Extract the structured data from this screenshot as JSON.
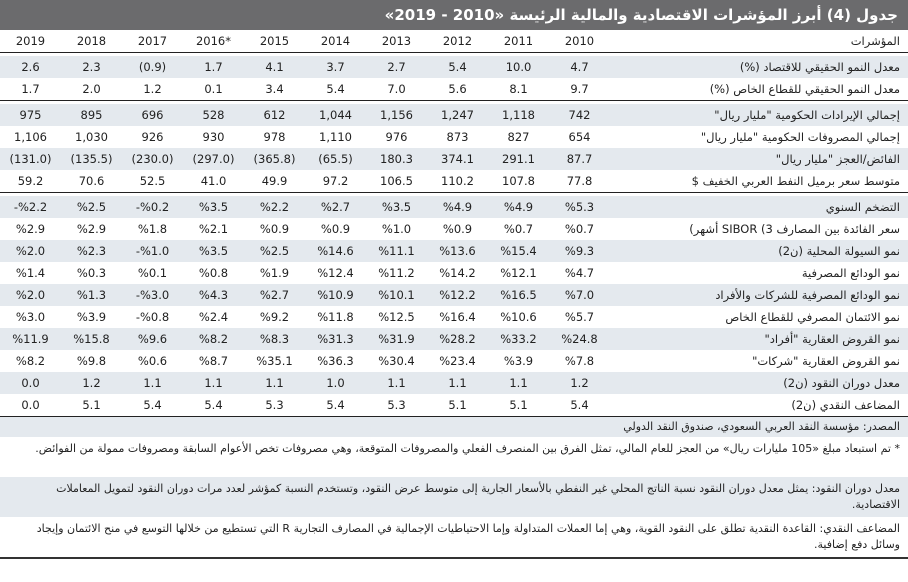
{
  "title": "جدول (4) أبرز المؤشرات الاقتصادية والمالية الرئيسة «2010 - 2019»",
  "header": {
    "label": "المؤشرات",
    "years": [
      "2010",
      "2011",
      "2012",
      "2013",
      "2014",
      "2015",
      "*2016",
      "2017",
      "2018",
      "2019"
    ]
  },
  "groups": [
    {
      "rows": [
        {
          "label": "معدل النمو الحقيقي للاقتصاد (%)",
          "values": [
            "4.7",
            "10.0",
            "5.4",
            "2.7",
            "3.7",
            "4.1",
            "1.7",
            "(0.9)",
            "2.3",
            "2.6"
          ]
        },
        {
          "label": "معدل النمو الحقيقي للقطاع الخاص (%)",
          "values": [
            "9.7",
            "8.1",
            "5.6",
            "7.0",
            "5.4",
            "3.4",
            "0.1",
            "1.2",
            "2.0",
            "1.7"
          ]
        }
      ]
    },
    {
      "rows": [
        {
          "label": "إجمالي الإيرادات الحكومية \"مليار ريال\"",
          "values": [
            "742",
            "1,118",
            "1,247",
            "1,156",
            "1,044",
            "612",
            "528",
            "696",
            "895",
            "975"
          ]
        },
        {
          "label": "إجمالي المصروفات الحكومية \"مليار ريال\"",
          "values": [
            "654",
            "827",
            "873",
            "976",
            "1,110",
            "978",
            "930",
            "926",
            "1,030",
            "1,106"
          ]
        },
        {
          "label": "الفائض/العجز \"مليار ريال\"",
          "values": [
            "87.7",
            "291.1",
            "374.1",
            "180.3",
            "(65.5)",
            "(365.8)",
            "(297.0)",
            "(230.0)",
            "(135.5)",
            "(131.0)"
          ]
        },
        {
          "label": "متوسط سعر برميل النفط العربي الخفيف $",
          "values": [
            "77.8",
            "107.8",
            "110.2",
            "106.5",
            "97.2",
            "49.9",
            "41.0",
            "52.5",
            "70.6",
            "59.2"
          ]
        }
      ]
    },
    {
      "rows": [
        {
          "label": "التضخم السنوي",
          "values": [
            "%5.3",
            "%4.9",
            "%4.9",
            "%3.5",
            "%2.7",
            "%2.2",
            "%3.5",
            "%0.2-",
            "%2.5",
            "%2.2-"
          ]
        },
        {
          "label": "سعر الفائدة بين المصارف 3) SIBOR أشهر)",
          "values": [
            "%0.7",
            "%0.7",
            "%0.9",
            "%1.0",
            "%0.9",
            "%0.9",
            "%2.1",
            "%1.8",
            "%2.9",
            "%2.9"
          ]
        },
        {
          "label": "نمو السيولة المحلية (ن2)",
          "values": [
            "%9.3",
            "%15.4",
            "%13.6",
            "%11.1",
            "%14.6",
            "%2.5",
            "%3.5",
            "%1.0-",
            "%2.3",
            "%2.0"
          ]
        },
        {
          "label": "نمو الودائع المصرفية",
          "values": [
            "%4.7",
            "%12.1",
            "%14.2",
            "%11.2",
            "%12.4",
            "%1.9",
            "%0.8",
            "%0.1",
            "%0.3",
            "%1.4"
          ]
        },
        {
          "label": "نمو الودائع المصرفية للشركات والأفراد",
          "values": [
            "%7.0",
            "%16.5",
            "%12.2",
            "%10.1",
            "%10.9",
            "%2.7",
            "%4.3",
            "%3.0-",
            "%1.3",
            "%2.0"
          ]
        },
        {
          "label": "نمو الائتمان المصرفي للقطاع الخاص",
          "values": [
            "%5.7",
            "%10.6",
            "%16.4",
            "%12.5",
            "%11.8",
            "%9.2",
            "%2.4",
            "%0.8-",
            "%3.9",
            "%3.0"
          ]
        },
        {
          "label": "نمو القروض العقارية \"أفراد\"",
          "values": [
            "%24.8",
            "%33.2",
            "%28.2",
            "%31.9",
            "%31.3",
            "%8.3",
            "%8.2",
            "%9.6",
            "%15.8",
            "%11.9"
          ]
        },
        {
          "label": "نمو القروض العقارية \"شركات\"",
          "values": [
            "%7.8",
            "%3.9",
            "%23.4",
            "%30.4",
            "%36.3",
            "%35.1",
            "%8.7",
            "%0.6",
            "%9.8",
            "%8.2"
          ]
        },
        {
          "label": "معدل دوران النقود (ن2)",
          "values": [
            "1.2",
            "1.1",
            "1.1",
            "1.1",
            "1.0",
            "1.1",
            "1.1",
            "1.1",
            "1.2",
            "0.0"
          ]
        },
        {
          "label": "المضاعف النقدي (ن2)",
          "values": [
            "5.4",
            "5.1",
            "5.1",
            "5.3",
            "5.4",
            "5.3",
            "5.4",
            "5.4",
            "5.1",
            "0.0"
          ]
        }
      ]
    }
  ],
  "notes": {
    "source": "المصدر: مؤسسة النقد العربي السعودي، صندوق النقد الدولي",
    "footnote_2016": "* تم استبعاد مبلغ «105 مليارات ريال» من العجز للعام المالي، تمثل الفرق بين المنصرف الفعلي والمصروفات المتوقعة، وهي مصروفات تخص الأعوام السابقة ومصروفات ممولة من الفوائض.",
    "velocity": "معدل دوران النقود: يمثل معدل دوران النقود نسبة الناتج المحلي غير النفطي بالأسعار الجارية إلى متوسط عرض النقود، وتستخدم النسبة كمؤشر لعدد مرات دوران النقود لتمويل المعاملات الاقتصادية.",
    "multiplier": "المضاعف النقدي: القاعدة النقدية تطلق على النقود القوية، وهي إما العملات المتداولة وإما الاحتياطيات الإجمالية في المصارف التجارية R التي تستطيع من خلالها التوسع في منح الائتمان وإيجاد وسائل دفع إضافية."
  },
  "colors": {
    "title_bg": "#6b6b6d",
    "row_shade": "#e4e9ee",
    "row_white": "#ffffff",
    "rule": "#222222"
  }
}
